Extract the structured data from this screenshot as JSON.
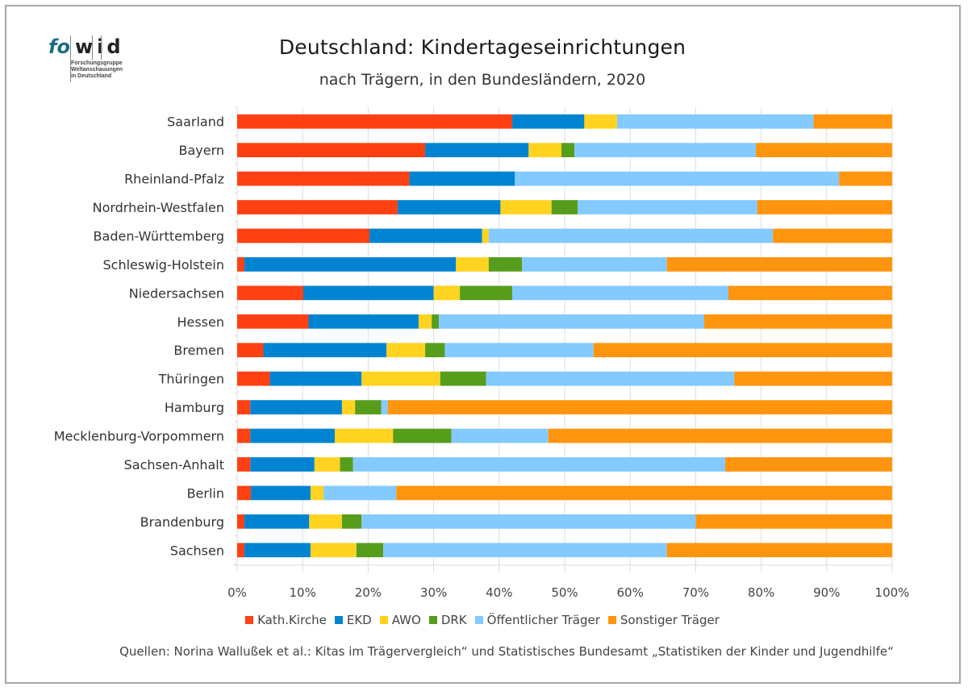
{
  "logo": {
    "word_part1": "fo",
    "word_part2": "w",
    "word_part3": "i",
    "word_part4": "d",
    "subtitle_lines": [
      "Forschungsgruppe",
      "Weltanschauungen",
      "in Deutschland"
    ]
  },
  "chart_data": {
    "type": "bar",
    "orientation": "horizontal",
    "stacked": "percent",
    "title": "Deutschland: Kindertageseinrichtungen",
    "subtitle": "nach Trägern, in den Bundesländern, 2020",
    "xlabel": "",
    "ylabel": "",
    "xlim": [
      0,
      100
    ],
    "x_ticks": [
      "0%",
      "10%",
      "20%",
      "30%",
      "40%",
      "50%",
      "60%",
      "70%",
      "80%",
      "90%",
      "100%"
    ],
    "grid": true,
    "legend_position": "bottom",
    "categories": [
      "Saarland",
      "Bayern",
      "Rheinland-Pfalz",
      "Nordrhein-Westfalen",
      "Baden-Württemberg",
      "Schleswig-Holstein",
      "Niedersachsen",
      "Hessen",
      "Bremen",
      "Thüringen",
      "Hamburg",
      "Mecklenburg-Vorpommern",
      "Sachsen-Anhalt",
      "Berlin",
      "Brandenburg",
      "Sachsen"
    ],
    "series": [
      {
        "name": "Kath.Kirche",
        "color": "#ff4013",
        "values": [
          42.0,
          28.7,
          26.3,
          24.5,
          20.2,
          1.1,
          10.1,
          10.9,
          4.0,
          5.0,
          2.0,
          2.0,
          2.0,
          2.1,
          1.1,
          1.1
        ]
      },
      {
        "name": "EKD",
        "color": "#0084d1",
        "values": [
          11.0,
          15.8,
          16.1,
          15.7,
          17.2,
          32.3,
          19.9,
          16.8,
          18.8,
          14.0,
          14.0,
          12.9,
          9.8,
          9.1,
          9.9,
          10.1
        ]
      },
      {
        "name": "AWO",
        "color": "#ffd320",
        "values": [
          5.0,
          5.0,
          0.0,
          7.8,
          1.0,
          5.0,
          4.0,
          2.0,
          5.9,
          12.0,
          2.0,
          8.9,
          3.9,
          2.0,
          5.0,
          7.0
        ]
      },
      {
        "name": "DRK",
        "color": "#579d1c",
        "values": [
          0.0,
          2.0,
          0.0,
          4.0,
          0.0,
          5.1,
          8.0,
          1.1,
          3.0,
          7.0,
          4.0,
          8.9,
          2.0,
          0.0,
          3.0,
          4.1
        ]
      },
      {
        "name": "Öffentlicher Träger",
        "color": "#83caff",
        "values": [
          30.0,
          27.7,
          49.5,
          27.4,
          43.4,
          22.1,
          33.0,
          40.5,
          22.7,
          37.9,
          1.0,
          14.8,
          56.8,
          11.1,
          51.0,
          43.3
        ]
      },
      {
        "name": "Sonstiger Träger",
        "color": "#ff950e",
        "values": [
          12.0,
          20.8,
          8.1,
          20.6,
          18.2,
          34.4,
          25.0,
          28.7,
          45.6,
          24.1,
          77.0,
          52.5,
          25.5,
          75.7,
          30.0,
          34.4
        ]
      }
    ]
  },
  "source": "Quellen: Norina Wallußek et al.: Kitas im Trägervergleich“ und Statistisches Bundesamt „Statistiken der Kinder und Jugendhilfe“"
}
